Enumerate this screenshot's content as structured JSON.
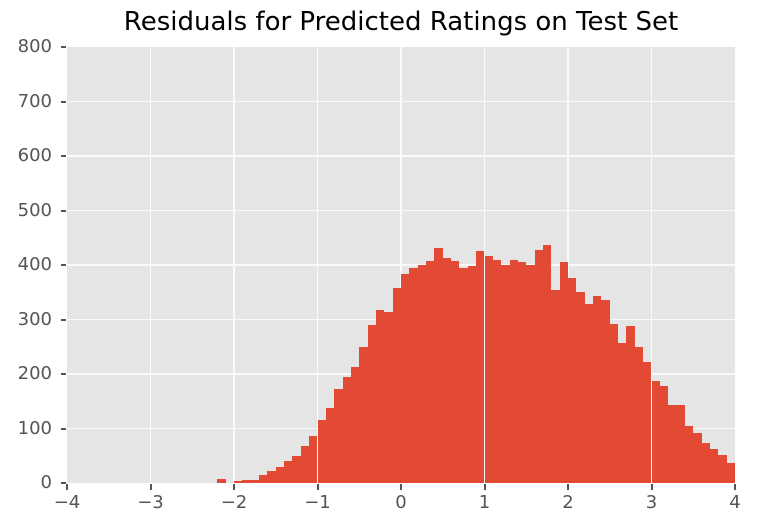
{
  "chart_data": {
    "type": "bar",
    "chart_kind": "histogram",
    "title": "Residuals for Predicted Ratings on Test Set",
    "xlabel": "",
    "ylabel": "",
    "xlim": [
      -4,
      4
    ],
    "ylim": [
      0,
      800
    ],
    "x_ticks": [
      -4,
      -3,
      -2,
      -1,
      0,
      1,
      2,
      3,
      4
    ],
    "x_tick_labels": [
      "−4",
      "−3",
      "−2",
      "−1",
      "0",
      "1",
      "2",
      "3",
      "4"
    ],
    "y_ticks": [
      0,
      100,
      200,
      300,
      400,
      500,
      600,
      700,
      800
    ],
    "y_tick_labels": [
      "0",
      "100",
      "200",
      "300",
      "400",
      "500",
      "600",
      "700",
      "800"
    ],
    "bin_start": -2.2,
    "bin_width": 0.1,
    "values": [
      7,
      0,
      3,
      5,
      6,
      15,
      22,
      30,
      41,
      50,
      68,
      86,
      115,
      138,
      173,
      194,
      213,
      250,
      290,
      318,
      313,
      358,
      384,
      394,
      400,
      408,
      431,
      412,
      407,
      395,
      399,
      425,
      417,
      409,
      400,
      410,
      405,
      400,
      427,
      436,
      354,
      406,
      377,
      351,
      328,
      343,
      336,
      291,
      256,
      289,
      249,
      222,
      188,
      178,
      143,
      143,
      104,
      92,
      74,
      63,
      51,
      36
    ],
    "grid": true,
    "legend": false,
    "style": {
      "bar_color": "#E24A33",
      "plot_background": "#E5E5E5",
      "grid_color": "#FAFAFA",
      "tick_label_color": "#555555",
      "tick_mark_color": "#555555",
      "title_color": "#000000",
      "figure_background": "#FFFFFF"
    }
  }
}
